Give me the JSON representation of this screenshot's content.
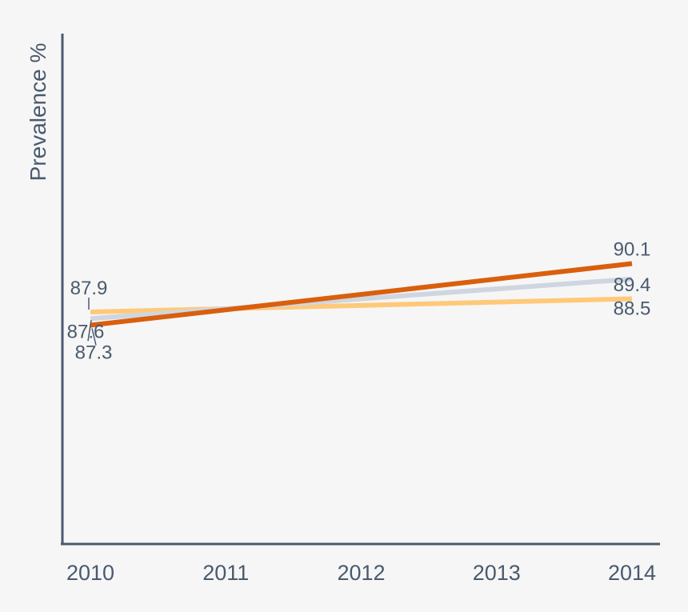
{
  "chart_data": {
    "type": "line",
    "title": "",
    "xlabel": "",
    "ylabel": "Prevalence %",
    "x": [
      "2010",
      "2011",
      "2012",
      "2013",
      "2014"
    ],
    "ylim": [
      80,
      100
    ],
    "grid": false,
    "series": [
      {
        "color": "#ffc97a",
        "values": [
          87.9,
          null,
          null,
          null,
          88.5
        ]
      },
      {
        "color": "#cfd6e0",
        "values": [
          87.6,
          null,
          null,
          null,
          89.4
        ]
      },
      {
        "color": "#d95f0e",
        "values": [
          87.3,
          null,
          null,
          null,
          90.1
        ]
      }
    ],
    "labels": {
      "start": [
        "87.9",
        "87.6",
        "87.3"
      ],
      "end": [
        "90.1",
        "89.4",
        "88.5"
      ]
    }
  }
}
